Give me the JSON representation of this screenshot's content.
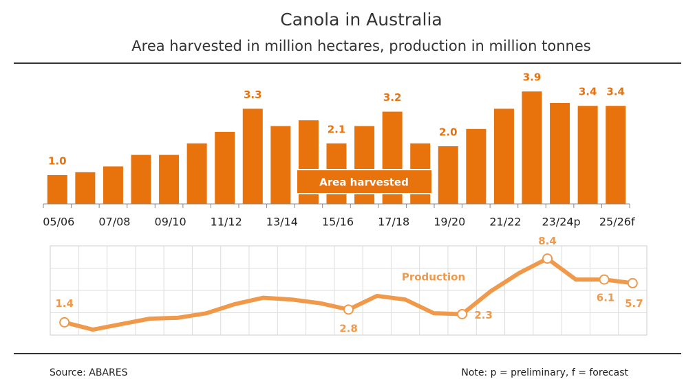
{
  "chart_data": [
    {
      "type": "bar",
      "title": "Canola in Australia",
      "subtitle": "Area harvested in million hectares, production in million tonnes",
      "label": "Area harvested",
      "categories": [
        "05/06",
        null,
        "07/08",
        null,
        "09/10",
        null,
        "11/12",
        null,
        "13/14",
        null,
        "15/16",
        null,
        "17/18",
        null,
        "19/20",
        null,
        "21/22",
        null,
        "23/24p",
        null,
        "25/26f"
      ],
      "values": [
        1.0,
        1.1,
        1.3,
        1.7,
        1.7,
        2.1,
        2.5,
        3.3,
        2.7,
        2.9,
        2.1,
        2.7,
        3.2,
        2.1,
        2.0,
        2.6,
        3.3,
        3.9,
        3.5,
        3.4,
        3.4
      ],
      "value_labels": [
        "1.0",
        null,
        null,
        null,
        null,
        null,
        null,
        "3.3",
        null,
        null,
        "2.1",
        null,
        "3.2",
        null,
        "2.0",
        null,
        null,
        "3.9",
        null,
        "3.4",
        "3.4"
      ],
      "color": "#e8720c",
      "ylim": [
        0,
        4
      ]
    },
    {
      "type": "line",
      "label": "Production",
      "values": [
        1.4,
        0.6,
        1.2,
        1.8,
        1.9,
        2.4,
        3.4,
        4.1,
        3.9,
        3.5,
        2.8,
        4.3,
        3.9,
        2.4,
        2.3,
        4.8,
        6.8,
        8.4,
        6.1,
        6.1,
        5.7
      ],
      "value_labels": [
        "1.4",
        null,
        null,
        null,
        null,
        null,
        null,
        null,
        null,
        null,
        "2.8",
        null,
        null,
        null,
        "2.3",
        null,
        null,
        "8.4",
        null,
        "6.1",
        "5.7"
      ],
      "color": "#f0994a",
      "ylim": [
        0,
        9.8
      ],
      "grid": true,
      "source": "Source: ABARES",
      "note": "Note: p = preliminary, f = forecast"
    }
  ]
}
